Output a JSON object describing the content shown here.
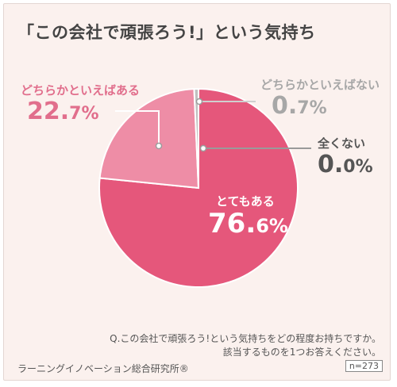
{
  "title": "「この会社で頑張ろう!」という気持ち",
  "question_line1": "Q.この会社で頑張ろう!という気持ちをどの程度お持ちですか。",
  "question_line2": "該当するものを1つお答えください。",
  "source": "ラーニングイノベーション総合研究所®",
  "n_label": "n=273",
  "chart_data": {
    "type": "pie",
    "title": "「この会社で頑張ろう!」という気持ち",
    "slices": [
      {
        "label": "とてもある",
        "value_int": "76.",
        "value_dec": "6%",
        "value": 76.6,
        "color": "#e5577b"
      },
      {
        "label": "どちらかといえばある",
        "value_int": "22.",
        "value_dec": "7%",
        "value": 22.7,
        "color": "#ee8da6"
      },
      {
        "label": "どちらかといえばない",
        "value_int": "0.",
        "value_dec": "7%",
        "value": 0.7,
        "color": "#c0c0c0"
      },
      {
        "label": "全くない",
        "value_int": "0.",
        "value_dec": "0%",
        "value": 0.0,
        "color": "#888888"
      }
    ]
  }
}
